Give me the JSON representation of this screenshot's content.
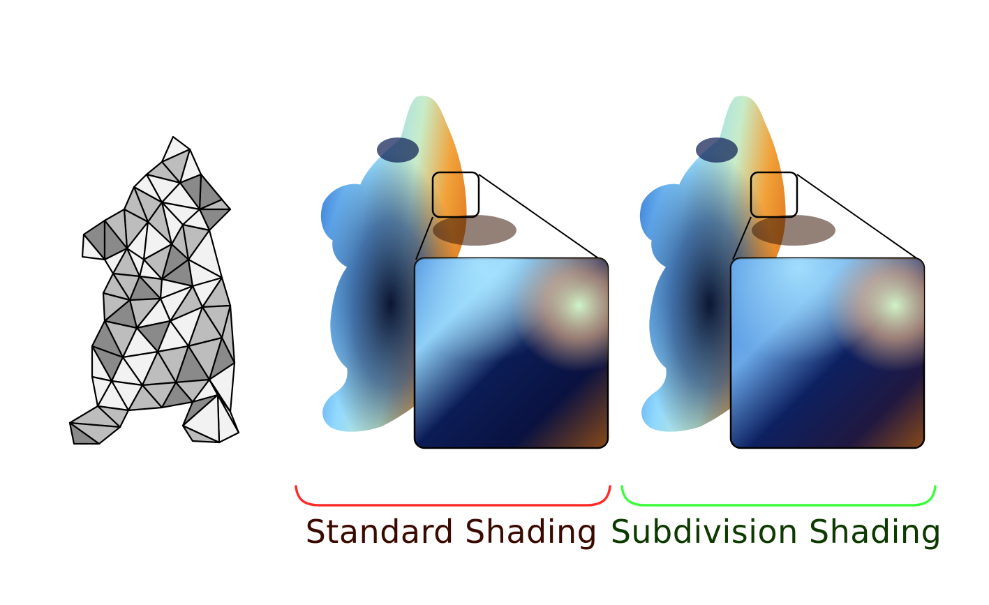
{
  "figure": {
    "panels": [
      {
        "id": "coarse-mesh",
        "kind": "wireframe-bunny"
      },
      {
        "id": "standard",
        "kind": "shaded-bunny",
        "label": "Standard Shading",
        "bracket_color": "#ff2a2a",
        "label_color": "#3a0a00"
      },
      {
        "id": "subdivision",
        "kind": "shaded-bunny",
        "label": "Subdivision Shading",
        "bracket_color": "#3aff3a",
        "label_color": "#0d3a00"
      }
    ],
    "shading_colors": {
      "light_blue": "#8fd8ff",
      "blue": "#2c6fd0",
      "dark_navy": "#020a28",
      "orange": "#f2a23a",
      "brown": "#7a3a0a",
      "highlight_green": "#d8ffd0"
    },
    "mesh_colors": {
      "light": "#f2f2f2",
      "mid": "#bdbdbd",
      "dark": "#8a8a8a",
      "edge": "#000000"
    }
  }
}
